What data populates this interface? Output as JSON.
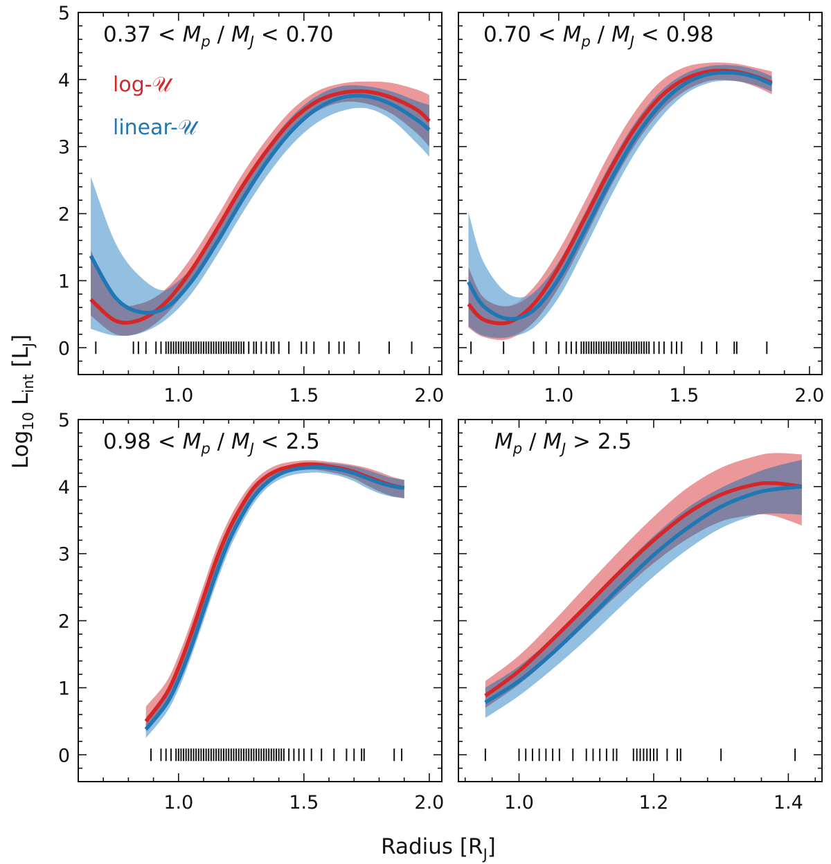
{
  "figure": {
    "xlabel": "Radius [R",
    "xlabel_sub": "J",
    "xlabel_close": "]",
    "ylabel": "Log",
    "ylabel_sub1": "10",
    "ylabel_mid": " L",
    "ylabel_sub2": "int",
    "ylabel_bracket": " [L",
    "ylabel_sub3": "J",
    "ylabel_close": "]"
  },
  "legend": [
    {
      "name": "log-𝒰",
      "color": "#d62728"
    },
    {
      "name": "linear-𝒰",
      "color": "#1f77b4"
    }
  ],
  "colors": {
    "log_line": "#d62728",
    "log_band": "#e8868a",
    "linear_line": "#1f77b4",
    "linear_band": "#6fa9d6",
    "overlap_band": "#7d7596"
  },
  "chart_data": [
    {
      "type": "line",
      "title": "0.37 < Mp / MJ < 0.70",
      "xlim": [
        0.6,
        2.05
      ],
      "ylim": [
        -0.4,
        5
      ],
      "xticks": [
        1.0,
        1.5,
        2.0
      ],
      "xtick_labels": [
        "1.0",
        "1.5",
        "2.0"
      ],
      "yticks": [
        0,
        1,
        2,
        3,
        4,
        5
      ],
      "ytick_labels": [
        "0",
        "1",
        "2",
        "3",
        "4",
        "5"
      ],
      "show_legend": true,
      "series": [
        {
          "name": "log-𝒰",
          "x": [
            0.65,
            0.75,
            0.85,
            0.95,
            1.05,
            1.15,
            1.25,
            1.35,
            1.45,
            1.55,
            1.65,
            1.75,
            1.85,
            1.95,
            2.0
          ],
          "y": [
            0.72,
            0.4,
            0.42,
            0.68,
            1.15,
            1.75,
            2.38,
            2.93,
            3.38,
            3.67,
            3.8,
            3.82,
            3.73,
            3.55,
            3.38
          ],
          "lower": [
            0.48,
            0.2,
            0.23,
            0.5,
            0.96,
            1.56,
            2.2,
            2.76,
            3.22,
            3.52,
            3.66,
            3.64,
            3.49,
            3.2,
            3.0
          ],
          "upper": [
            1.45,
            0.7,
            0.66,
            0.88,
            1.34,
            1.93,
            2.56,
            3.1,
            3.54,
            3.82,
            3.94,
            3.97,
            3.95,
            3.85,
            3.77
          ]
        },
        {
          "name": "linear-𝒰",
          "x": [
            0.65,
            0.75,
            0.85,
            0.95,
            1.05,
            1.15,
            1.25,
            1.35,
            1.45,
            1.55,
            1.65,
            1.75,
            1.85,
            1.95,
            2.0
          ],
          "y": [
            1.37,
            0.74,
            0.53,
            0.6,
            0.98,
            1.55,
            2.18,
            2.76,
            3.23,
            3.56,
            3.73,
            3.75,
            3.63,
            3.4,
            3.25
          ],
          "lower": [
            0.28,
            0.18,
            0.22,
            0.42,
            0.8,
            1.36,
            1.98,
            2.55,
            3.02,
            3.35,
            3.53,
            3.57,
            3.4,
            3.05,
            2.85
          ],
          "upper": [
            2.55,
            1.55,
            1.05,
            0.86,
            1.18,
            1.75,
            2.38,
            2.97,
            3.44,
            3.75,
            3.9,
            3.9,
            3.82,
            3.68,
            3.62
          ]
        }
      ],
      "rug": [
        0.67,
        0.82,
        0.84,
        0.87,
        0.91,
        0.93,
        0.95,
        0.96,
        0.97,
        0.98,
        0.99,
        1.0,
        1.01,
        1.02,
        1.03,
        1.04,
        1.05,
        1.06,
        1.07,
        1.08,
        1.09,
        1.1,
        1.11,
        1.12,
        1.13,
        1.14,
        1.15,
        1.16,
        1.17,
        1.18,
        1.19,
        1.2,
        1.21,
        1.22,
        1.23,
        1.24,
        1.25,
        1.26,
        1.28,
        1.3,
        1.31,
        1.33,
        1.35,
        1.37,
        1.38,
        1.4,
        1.44,
        1.49,
        1.51,
        1.54,
        1.6,
        1.64,
        1.66,
        1.72,
        1.84,
        1.93
      ]
    },
    {
      "type": "line",
      "title": "0.70 < Mp / MJ < 0.98",
      "xlim": [
        0.6,
        2.05
      ],
      "ylim": [
        -0.4,
        5
      ],
      "xticks": [
        1.0,
        1.5,
        2.0
      ],
      "xtick_labels": [
        "1.0",
        "1.5",
        "2.0"
      ],
      "yticks": [
        0,
        1,
        2,
        3,
        4,
        5
      ],
      "ytick_labels": [
        "",
        "",
        "",
        "",
        "",
        ""
      ],
      "show_legend": false,
      "series": [
        {
          "name": "log-𝒰",
          "x": [
            0.64,
            0.7,
            0.8,
            0.9,
            1.0,
            1.1,
            1.2,
            1.3,
            1.4,
            1.5,
            1.6,
            1.7,
            1.78,
            1.85
          ],
          "y": [
            0.65,
            0.42,
            0.38,
            0.65,
            1.2,
            1.9,
            2.62,
            3.25,
            3.72,
            4.0,
            4.12,
            4.12,
            4.05,
            3.95
          ],
          "lower": [
            0.3,
            0.16,
            0.13,
            0.38,
            0.9,
            1.6,
            2.35,
            3.0,
            3.5,
            3.82,
            3.98,
            3.98,
            3.9,
            3.78
          ],
          "upper": [
            1.2,
            0.75,
            0.62,
            0.9,
            1.45,
            2.15,
            2.88,
            3.5,
            3.95,
            4.18,
            4.25,
            4.24,
            4.18,
            4.12
          ]
        },
        {
          "name": "linear-𝒰",
          "x": [
            0.64,
            0.7,
            0.8,
            0.9,
            1.0,
            1.1,
            1.2,
            1.3,
            1.4,
            1.5,
            1.6,
            1.7,
            1.78,
            1.85
          ],
          "y": [
            0.98,
            0.62,
            0.43,
            0.56,
            1.03,
            1.72,
            2.45,
            3.1,
            3.6,
            3.93,
            4.08,
            4.1,
            4.04,
            3.93
          ],
          "lower": [
            0.32,
            0.18,
            0.16,
            0.3,
            0.75,
            1.45,
            2.2,
            2.88,
            3.4,
            3.77,
            3.95,
            3.98,
            3.92,
            3.82
          ],
          "upper": [
            2.02,
            1.28,
            0.8,
            0.82,
            1.28,
            1.98,
            2.7,
            3.33,
            3.8,
            4.08,
            4.2,
            4.21,
            4.15,
            4.05
          ]
        }
      ],
      "rug": [
        0.65,
        0.78,
        0.9,
        0.95,
        1.0,
        1.03,
        1.05,
        1.07,
        1.09,
        1.1,
        1.11,
        1.12,
        1.13,
        1.14,
        1.15,
        1.16,
        1.17,
        1.18,
        1.19,
        1.2,
        1.21,
        1.22,
        1.23,
        1.24,
        1.25,
        1.26,
        1.27,
        1.28,
        1.29,
        1.3,
        1.31,
        1.32,
        1.33,
        1.34,
        1.35,
        1.36,
        1.38,
        1.4,
        1.42,
        1.45,
        1.47,
        1.49,
        1.57,
        1.63,
        1.7,
        1.71,
        1.83
      ]
    },
    {
      "type": "line",
      "title": "0.98 < Mp / MJ < 2.5",
      "xlim": [
        0.6,
        2.05
      ],
      "ylim": [
        -0.4,
        5
      ],
      "xticks": [
        1.0,
        1.5,
        2.0
      ],
      "xtick_labels": [
        "1.0",
        "1.5",
        "2.0"
      ],
      "yticks": [
        0,
        1,
        2,
        3,
        4,
        5
      ],
      "ytick_labels": [
        "0",
        "1",
        "2",
        "3",
        "4",
        "5"
      ],
      "show_legend": false,
      "series": [
        {
          "name": "log-𝒰",
          "x": [
            0.87,
            0.95,
            1.0,
            1.05,
            1.1,
            1.15,
            1.2,
            1.25,
            1.3,
            1.35,
            1.4,
            1.45,
            1.5,
            1.55,
            1.6,
            1.65,
            1.7,
            1.75,
            1.8,
            1.85,
            1.9
          ],
          "y": [
            0.5,
            0.9,
            1.3,
            1.8,
            2.35,
            2.9,
            3.35,
            3.7,
            3.98,
            4.15,
            4.25,
            4.3,
            4.33,
            4.33,
            4.3,
            4.27,
            4.22,
            4.15,
            4.08,
            4.02,
            3.98
          ],
          "lower": [
            0.35,
            0.75,
            1.15,
            1.65,
            2.2,
            2.75,
            3.22,
            3.58,
            3.88,
            4.06,
            4.17,
            4.22,
            4.25,
            4.25,
            4.22,
            4.18,
            4.12,
            4.02,
            3.93,
            3.86,
            3.82
          ],
          "upper": [
            0.72,
            1.08,
            1.48,
            1.98,
            2.53,
            3.07,
            3.5,
            3.83,
            4.08,
            4.24,
            4.33,
            4.37,
            4.39,
            4.39,
            4.37,
            4.35,
            4.32,
            4.28,
            4.22,
            4.15,
            4.1
          ]
        },
        {
          "name": "linear-𝒰",
          "x": [
            0.87,
            0.95,
            1.0,
            1.05,
            1.1,
            1.15,
            1.2,
            1.25,
            1.3,
            1.35,
            1.4,
            1.45,
            1.5,
            1.55,
            1.6,
            1.65,
            1.7,
            1.75,
            1.8,
            1.85,
            1.9
          ],
          "y": [
            0.38,
            0.75,
            1.12,
            1.6,
            2.15,
            2.7,
            3.18,
            3.55,
            3.85,
            4.05,
            4.18,
            4.25,
            4.28,
            4.29,
            4.28,
            4.25,
            4.2,
            4.13,
            4.06,
            4.01,
            3.98
          ],
          "lower": [
            0.25,
            0.62,
            0.98,
            1.46,
            2.0,
            2.55,
            3.04,
            3.43,
            3.75,
            3.97,
            4.1,
            4.17,
            4.2,
            4.21,
            4.19,
            4.15,
            4.08,
            3.98,
            3.9,
            3.85,
            3.83
          ],
          "upper": [
            0.55,
            0.92,
            1.3,
            1.78,
            2.32,
            2.87,
            3.33,
            3.68,
            3.96,
            4.14,
            4.26,
            4.32,
            4.35,
            4.36,
            4.35,
            4.33,
            4.3,
            4.25,
            4.19,
            4.13,
            4.1
          ]
        }
      ],
      "rug": [
        0.89,
        0.93,
        0.95,
        0.97,
        0.99,
        1.0,
        1.01,
        1.02,
        1.03,
        1.04,
        1.05,
        1.06,
        1.07,
        1.08,
        1.09,
        1.1,
        1.11,
        1.12,
        1.13,
        1.14,
        1.15,
        1.16,
        1.17,
        1.18,
        1.19,
        1.2,
        1.21,
        1.22,
        1.23,
        1.24,
        1.25,
        1.26,
        1.27,
        1.28,
        1.29,
        1.3,
        1.31,
        1.32,
        1.33,
        1.34,
        1.35,
        1.36,
        1.37,
        1.38,
        1.39,
        1.4,
        1.41,
        1.42,
        1.44,
        1.46,
        1.48,
        1.5,
        1.53,
        1.57,
        1.62,
        1.67,
        1.7,
        1.73,
        1.74,
        1.86,
        1.89
      ]
    },
    {
      "type": "line",
      "title": "Mp / MJ > 2.5",
      "xlim": [
        0.91,
        1.45
      ],
      "ylim": [
        -0.4,
        5
      ],
      "xticks": [
        1.0,
        1.2,
        1.4
      ],
      "xtick_labels": [
        "1.0",
        "1.2",
        "1.4"
      ],
      "yticks": [
        0,
        1,
        2,
        3,
        4,
        5
      ],
      "ytick_labels": [
        "",
        "",
        "",
        "",
        "",
        ""
      ],
      "show_legend": false,
      "series": [
        {
          "name": "log-𝒰",
          "x": [
            0.95,
            1.0,
            1.05,
            1.1,
            1.15,
            1.2,
            1.25,
            1.3,
            1.35,
            1.38,
            1.42
          ],
          "y": [
            0.88,
            1.25,
            1.72,
            2.22,
            2.73,
            3.2,
            3.6,
            3.88,
            4.03,
            4.05,
            4.0
          ],
          "lower": [
            0.7,
            1.05,
            1.48,
            1.95,
            2.42,
            2.86,
            3.22,
            3.48,
            3.58,
            3.56,
            3.42
          ],
          "upper": [
            1.1,
            1.48,
            1.98,
            2.52,
            3.05,
            3.55,
            3.98,
            4.28,
            4.45,
            4.5,
            4.48
          ]
        },
        {
          "name": "linear-𝒰",
          "x": [
            0.95,
            1.0,
            1.05,
            1.1,
            1.15,
            1.2,
            1.25,
            1.3,
            1.35,
            1.38,
            1.42
          ],
          "y": [
            0.78,
            1.1,
            1.52,
            2.0,
            2.5,
            2.98,
            3.38,
            3.7,
            3.9,
            3.96,
            4.0
          ],
          "lower": [
            0.55,
            0.88,
            1.28,
            1.72,
            2.2,
            2.66,
            3.06,
            3.38,
            3.57,
            3.6,
            3.58
          ],
          "upper": [
            1.0,
            1.32,
            1.75,
            2.25,
            2.77,
            3.26,
            3.68,
            3.98,
            4.2,
            4.3,
            4.4
          ]
        }
      ],
      "rug": [
        0.95,
        1.0,
        1.01,
        1.02,
        1.03,
        1.04,
        1.05,
        1.06,
        1.08,
        1.1,
        1.11,
        1.12,
        1.13,
        1.14,
        1.145,
        1.17,
        1.175,
        1.18,
        1.185,
        1.19,
        1.195,
        1.2,
        1.205,
        1.22,
        1.235,
        1.24,
        1.3,
        1.41
      ]
    }
  ]
}
